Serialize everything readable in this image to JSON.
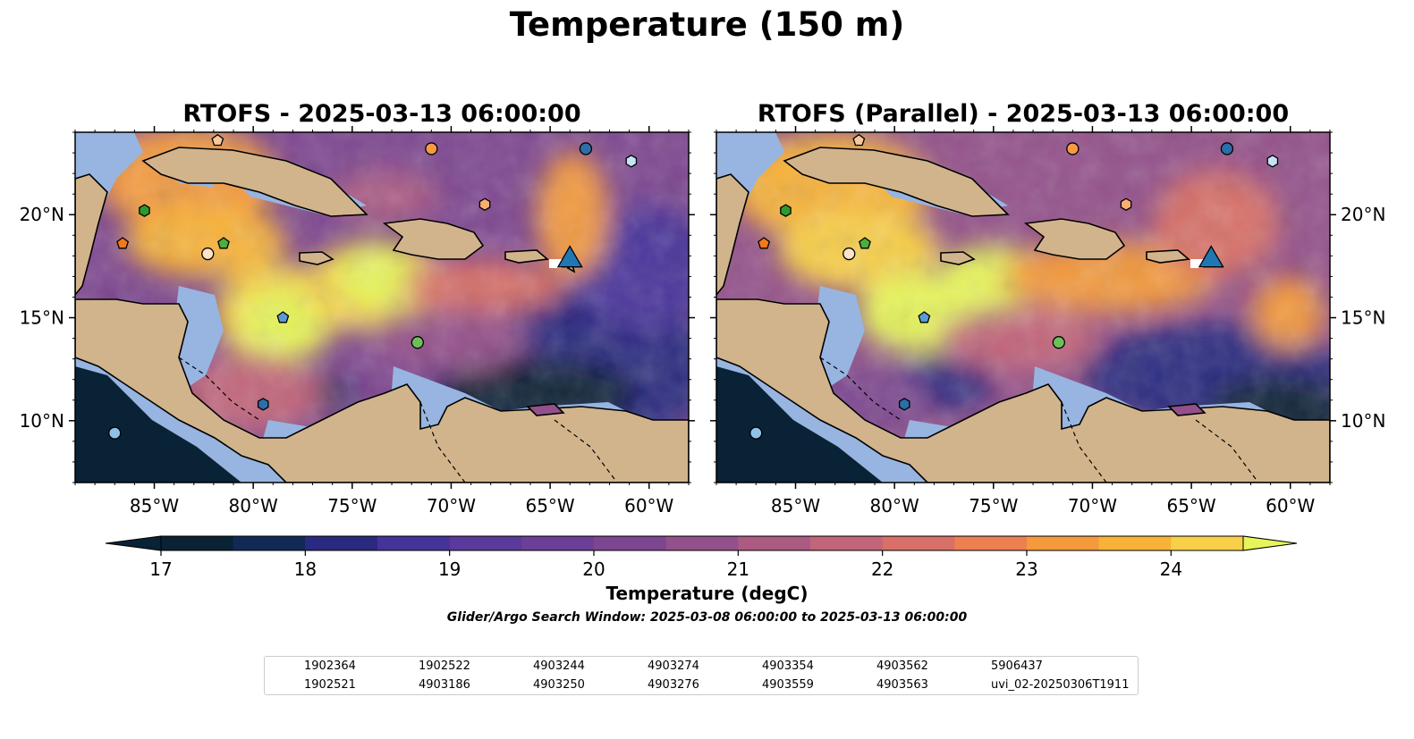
{
  "figure_title": "Temperature (150 m)",
  "maps": [
    {
      "title": "RTOFS - 2025-03-13 06:00:00"
    },
    {
      "title": "RTOFS (Parallel) - 2025-03-13 06:00:00"
    }
  ],
  "colorbar": {
    "label": "Temperature (degC)",
    "ticks": [
      "17",
      "18",
      "19",
      "20",
      "21",
      "22",
      "23",
      "24"
    ]
  },
  "search_window": "Glider/Argo Search Window: 2025-03-08 06:00:00 to 2025-03-13 06:00:00",
  "legend": [
    {
      "label": "1902364",
      "marker": "circle",
      "color": "#2b6fa6"
    },
    {
      "label": "1902521",
      "marker": "hexagon",
      "color": "#2b6fa6"
    },
    {
      "label": "1902522",
      "marker": "pentagon",
      "color": "#5b9bd5"
    },
    {
      "label": "4903186",
      "marker": "circle",
      "color": "#8fc1e8"
    },
    {
      "label": "4903244",
      "marker": "hexagon",
      "color": "#c6e2f5"
    },
    {
      "label": "4903250",
      "marker": "pentagon",
      "color": "#f07a1a"
    },
    {
      "label": "4903274",
      "marker": "circle",
      "color": "#f59a45"
    },
    {
      "label": "4903276",
      "marker": "hexagon",
      "color": "#f7b070"
    },
    {
      "label": "4903354",
      "marker": "pentagon",
      "color": "#f9c89a"
    },
    {
      "label": "4903559",
      "marker": "circle",
      "color": "#fde3c8"
    },
    {
      "label": "4903562",
      "marker": "hexagon",
      "color": "#2e9a2e"
    },
    {
      "label": "4903563",
      "marker": "pentagon",
      "color": "#4caf3c"
    },
    {
      "label": "5906437",
      "marker": "circle",
      "color": "#6cc05a"
    },
    {
      "label": "uvi_02-20250306T1911",
      "marker": "triangle",
      "color": "#1f77b4"
    }
  ],
  "chart_data": {
    "type": "heatmap",
    "variable": "Temperature (150 m)",
    "units": "degC",
    "color_range": [
      17,
      24.5
    ],
    "color_levels": [
      17,
      17.5,
      18,
      18.5,
      19,
      19.5,
      20,
      20.5,
      21,
      21.5,
      22,
      22.5,
      23,
      23.5,
      24,
      24.5
    ],
    "colormap": [
      "#0a2236",
      "#112a55",
      "#2a2a80",
      "#46339a",
      "#5a3a9a",
      "#6b3f96",
      "#7d4690",
      "#93508a",
      "#ab5a82",
      "#c2657a",
      "#d87068",
      "#ec8050",
      "#f49a3c",
      "#f8b238",
      "#f8cf48",
      "#e6f55a"
    ],
    "lon_range": [
      -89,
      -58
    ],
    "lat_range": [
      7,
      24
    ],
    "x_ticks": [
      "85°W",
      "80°W",
      "75°W",
      "70°W",
      "65°W",
      "60°W"
    ],
    "y_ticks": [
      "20°N",
      "15°N",
      "10°N"
    ],
    "land_color": "#d2b48c",
    "shelf_color": "#97b5e0",
    "observations": [
      {
        "id": "1902364",
        "lon": -63.2,
        "lat": 23.2
      },
      {
        "id": "1902521",
        "lon": -79.5,
        "lat": 10.8
      },
      {
        "id": "1902522",
        "lon": -78.5,
        "lat": 15.0
      },
      {
        "id": "4903186",
        "lon": -87.0,
        "lat": 9.4
      },
      {
        "id": "4903244",
        "lon": -60.9,
        "lat": 22.6
      },
      {
        "id": "4903250",
        "lon": -86.6,
        "lat": 18.6
      },
      {
        "id": "4903274",
        "lon": -71.0,
        "lat": 23.2
      },
      {
        "id": "4903276",
        "lon": -68.3,
        "lat": 20.5
      },
      {
        "id": "4903354",
        "lon": -81.8,
        "lat": 23.6
      },
      {
        "id": "4903559",
        "lon": -82.3,
        "lat": 18.1
      },
      {
        "id": "4903562",
        "lon": -85.5,
        "lat": 20.2
      },
      {
        "id": "4903563",
        "lon": -81.5,
        "lat": 18.6
      },
      {
        "id": "5906437",
        "lon": -71.7,
        "lat": 13.8
      },
      {
        "id": "uvi_02-20250306T1911",
        "lon": -64.0,
        "lat": 17.8
      }
    ]
  }
}
